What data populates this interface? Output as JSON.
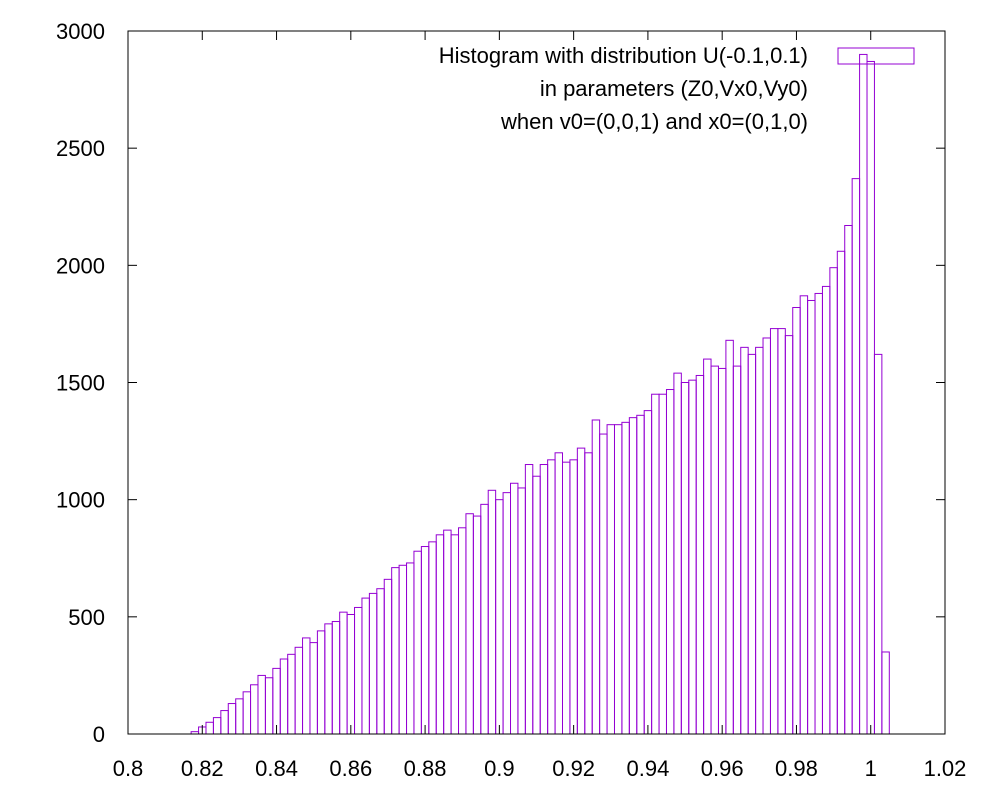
{
  "chart_data": {
    "type": "bar",
    "subtype": "histogram",
    "legend": {
      "lines": [
        "Histogram with distribution U(-0.1,0.1)",
        "in parameters (Z0,Vx0,Vy0)",
        "when v0=(0,0,1) and x0=(0,1,0)"
      ],
      "placement": "top-right"
    },
    "series_color": "#9400d3",
    "xlim": [
      0.8,
      1.02
    ],
    "ylim": [
      0,
      3000
    ],
    "xticks": [
      "0.8",
      "0.82",
      "0.84",
      "0.86",
      "0.88",
      "0.9",
      "0.92",
      "0.94",
      "0.96",
      "0.98",
      "1",
      "1.02"
    ],
    "yticks": [
      "0",
      "500",
      "1000",
      "1500",
      "2000",
      "2500",
      "3000"
    ],
    "bin_width": 0.002,
    "x": [
      0.818,
      0.82,
      0.822,
      0.824,
      0.826,
      0.828,
      0.83,
      0.832,
      0.834,
      0.836,
      0.838,
      0.84,
      0.842,
      0.844,
      0.846,
      0.848,
      0.85,
      0.852,
      0.854,
      0.856,
      0.858,
      0.86,
      0.862,
      0.864,
      0.866,
      0.868,
      0.87,
      0.872,
      0.874,
      0.876,
      0.878,
      0.88,
      0.882,
      0.884,
      0.886,
      0.888,
      0.89,
      0.892,
      0.894,
      0.896,
      0.898,
      0.9,
      0.902,
      0.904,
      0.906,
      0.908,
      0.91,
      0.912,
      0.914,
      0.916,
      0.918,
      0.92,
      0.922,
      0.924,
      0.926,
      0.928,
      0.93,
      0.932,
      0.934,
      0.936,
      0.938,
      0.94,
      0.942,
      0.944,
      0.946,
      0.948,
      0.95,
      0.952,
      0.954,
      0.956,
      0.958,
      0.96,
      0.962,
      0.964,
      0.966,
      0.968,
      0.97,
      0.972,
      0.974,
      0.976,
      0.978,
      0.98,
      0.982,
      0.984,
      0.986,
      0.988,
      0.99,
      0.992,
      0.994,
      0.996,
      0.998,
      1.0,
      1.002,
      1.004
    ],
    "values": [
      10,
      30,
      50,
      70,
      100,
      130,
      150,
      180,
      210,
      250,
      240,
      280,
      320,
      340,
      370,
      410,
      390,
      440,
      470,
      480,
      520,
      510,
      540,
      580,
      600,
      620,
      660,
      710,
      720,
      730,
      780,
      800,
      820,
      850,
      870,
      850,
      880,
      940,
      930,
      980,
      1040,
      1000,
      1030,
      1070,
      1050,
      1150,
      1100,
      1150,
      1170,
      1200,
      1160,
      1170,
      1220,
      1200,
      1340,
      1280,
      1320,
      1320,
      1330,
      1350,
      1360,
      1380,
      1450,
      1450,
      1470,
      1540,
      1500,
      1510,
      1530,
      1600,
      1570,
      1560,
      1680,
      1570,
      1650,
      1620,
      1650,
      1690,
      1730,
      1730,
      1700,
      1820,
      1870,
      1850,
      1880,
      1910,
      1990,
      2060,
      2170,
      2370,
      2900,
      2870,
      1620,
      350
    ]
  }
}
